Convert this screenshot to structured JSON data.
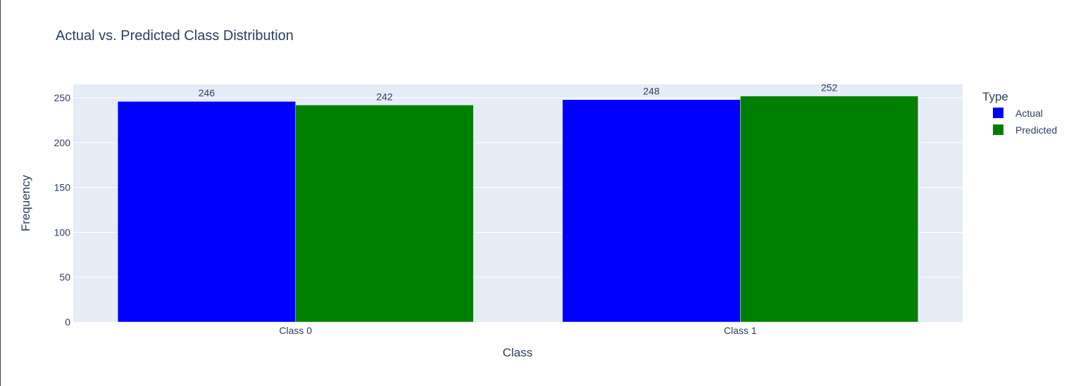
{
  "chart_data": {
    "type": "bar",
    "title": "Actual vs. Predicted Class Distribution",
    "xlabel": "Class",
    "ylabel": "Frequency",
    "categories": [
      "Class 0",
      "Class 1"
    ],
    "series": [
      {
        "name": "Actual",
        "values": [
          246,
          248
        ],
        "color": "#0000ff"
      },
      {
        "name": "Predicted",
        "values": [
          242,
          252
        ],
        "color": "#008000"
      }
    ],
    "ylim": [
      0,
      265
    ],
    "yticks": [
      0,
      50,
      100,
      150,
      200,
      250
    ],
    "grid": true,
    "legend": {
      "title": "Type",
      "placement": "right"
    },
    "plot_background": "#e5ecf6"
  }
}
